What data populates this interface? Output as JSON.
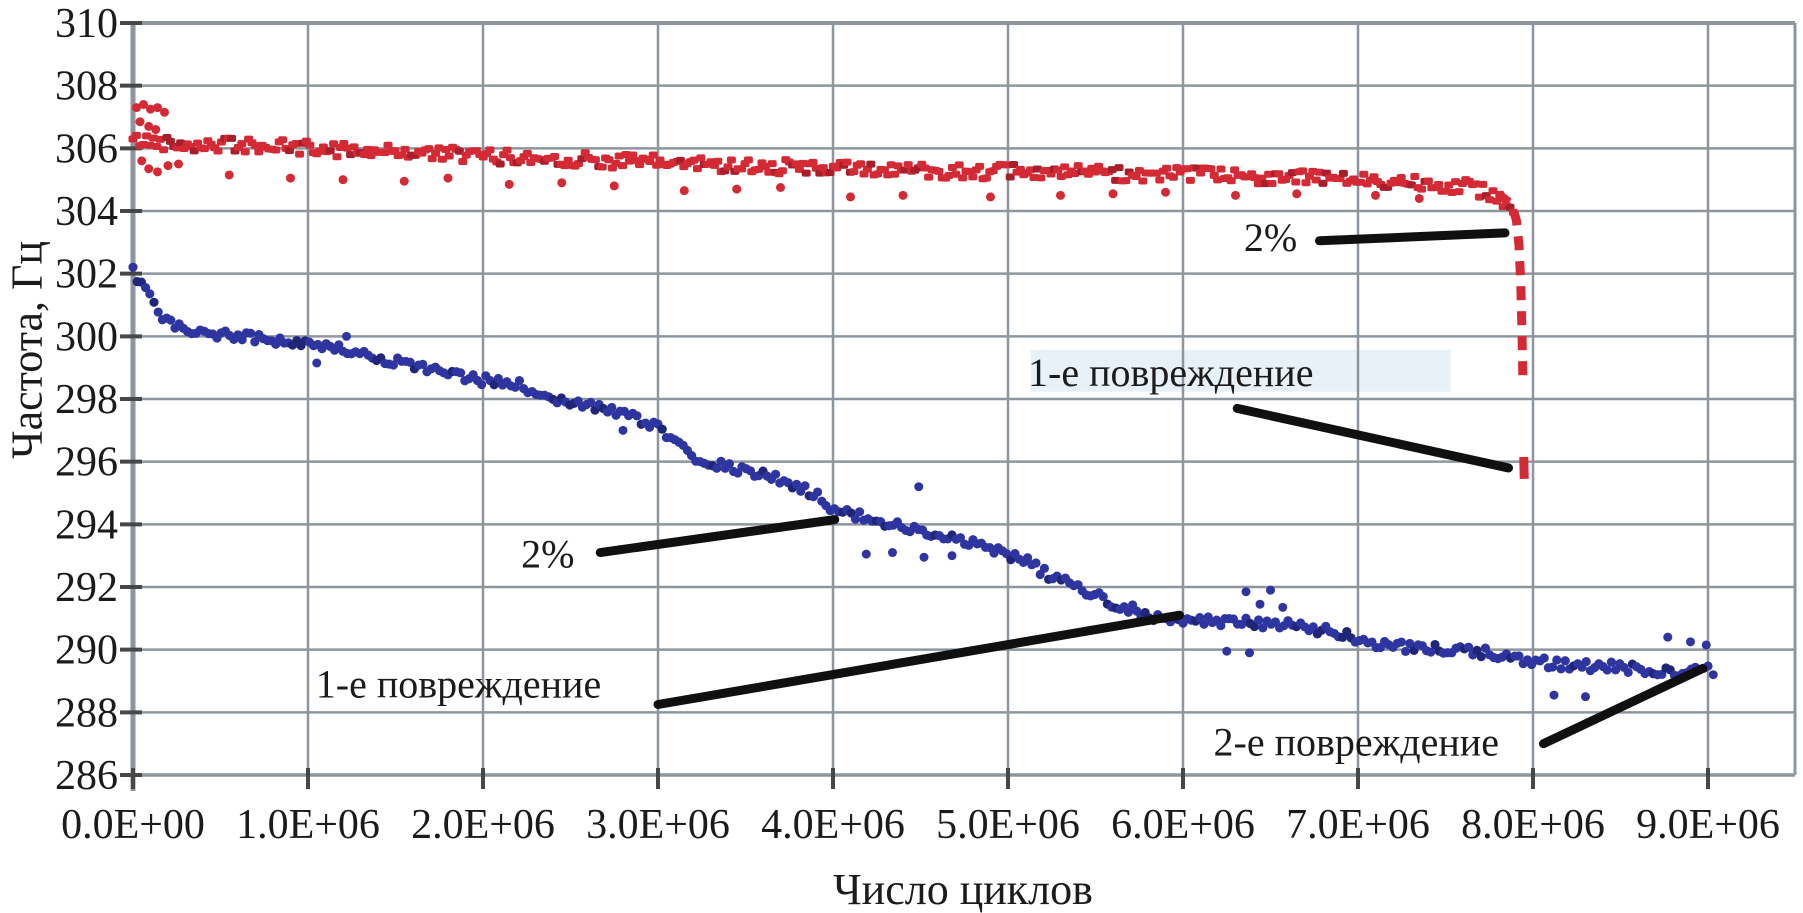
{
  "chart_data": {
    "type": "scatter",
    "title": "",
    "xlabel": "Число циклов",
    "ylabel": "Частота, Гц",
    "x_unit": "millions of cycles",
    "y_unit": "Hz",
    "xlim_millions": [
      0,
      9.5
    ],
    "ylim": [
      286,
      310
    ],
    "grid": true,
    "x_tick_values_millions": [
      0,
      1,
      2,
      3,
      4,
      5,
      6,
      7,
      8,
      9
    ],
    "x_tick_labels": [
      "0.0E+00",
      "1.0E+06",
      "2.0E+06",
      "3.0E+06",
      "4.0E+06",
      "5.0E+06",
      "6.0E+06",
      "7.0E+06",
      "8.0E+06",
      "9.0E+06"
    ],
    "y_tick_values": [
      310,
      308,
      306,
      304,
      302,
      300,
      298,
      296,
      294,
      292,
      290,
      288,
      286
    ],
    "y_tick_labels": [
      "310",
      "308",
      "306",
      "304",
      "302",
      "300",
      "298",
      "296",
      "294",
      "292",
      "290",
      "288",
      "286"
    ],
    "series": [
      {
        "id": "red",
        "name": "верхняя кривая (красная)",
        "color": "#d42a35",
        "color_dark": "#a81f2b",
        "noise_hz": 0.24,
        "anchors": [
          [
            0.0,
            306.25
          ],
          [
            0.3,
            306.15
          ],
          [
            0.6,
            306.1
          ],
          [
            1.0,
            306.0
          ],
          [
            1.5,
            305.9
          ],
          [
            2.0,
            305.75
          ],
          [
            2.5,
            305.65
          ],
          [
            3.0,
            305.55
          ],
          [
            3.5,
            305.45
          ],
          [
            4.0,
            305.35
          ],
          [
            4.5,
            305.3
          ],
          [
            5.0,
            305.25
          ],
          [
            5.5,
            305.2
          ],
          [
            6.0,
            305.15
          ],
          [
            6.5,
            305.1
          ],
          [
            7.0,
            305.0
          ],
          [
            7.3,
            304.95
          ],
          [
            7.5,
            304.85
          ],
          [
            7.65,
            304.75
          ],
          [
            7.78,
            304.55
          ],
          [
            7.85,
            304.3
          ],
          [
            7.89,
            304.05
          ]
        ],
        "outliers": [
          [
            0.55,
            305.15
          ],
          [
            0.9,
            305.05
          ],
          [
            1.2,
            305.0
          ],
          [
            1.55,
            304.95
          ],
          [
            1.8,
            305.05
          ],
          [
            2.15,
            304.85
          ],
          [
            2.45,
            304.9
          ],
          [
            2.75,
            304.8
          ],
          [
            3.15,
            304.65
          ],
          [
            3.45,
            304.7
          ],
          [
            3.7,
            304.75
          ],
          [
            4.1,
            304.45
          ],
          [
            4.4,
            304.5
          ],
          [
            4.9,
            304.45
          ],
          [
            5.3,
            304.5
          ],
          [
            5.6,
            304.55
          ],
          [
            5.9,
            304.6
          ],
          [
            6.3,
            304.5
          ],
          [
            6.65,
            304.55
          ],
          [
            7.1,
            304.5
          ],
          [
            7.35,
            304.4
          ]
        ],
        "start_cluster": [
          [
            0.02,
            307.3
          ],
          [
            0.06,
            307.4
          ],
          [
            0.1,
            307.25
          ],
          [
            0.14,
            307.3
          ],
          [
            0.18,
            307.15
          ],
          [
            0.04,
            306.85
          ],
          [
            0.09,
            306.7
          ],
          [
            0.13,
            306.6
          ],
          [
            0.05,
            305.6
          ],
          [
            0.09,
            305.35
          ],
          [
            0.14,
            305.25
          ],
          [
            0.2,
            305.45
          ],
          [
            0.26,
            305.5
          ]
        ],
        "drop_dash_path": [
          [
            7.8,
            304.55
          ],
          [
            7.88,
            304.2
          ],
          [
            7.905,
            303.7
          ],
          [
            7.92,
            302.9
          ],
          [
            7.93,
            301.7
          ],
          [
            7.937,
            300.2
          ],
          [
            7.942,
            298.65
          ]
        ],
        "drop_final_dash": [
          [
            7.947,
            296.15
          ],
          [
            7.95,
            295.45
          ]
        ]
      },
      {
        "id": "blue",
        "name": "нижняя кривая (синяя)",
        "color": "#2e35a0",
        "color_dark": "#1f2577",
        "noise_hz": 0.16,
        "anchors": [
          [
            0.0,
            302.05
          ],
          [
            0.04,
            301.7
          ],
          [
            0.08,
            301.35
          ],
          [
            0.12,
            301.0
          ],
          [
            0.16,
            300.7
          ],
          [
            0.22,
            300.45
          ],
          [
            0.3,
            300.25
          ],
          [
            0.45,
            300.1
          ],
          [
            0.6,
            300.0
          ],
          [
            0.8,
            299.9
          ],
          [
            1.0,
            299.75
          ],
          [
            1.2,
            299.55
          ],
          [
            1.4,
            299.3
          ],
          [
            1.6,
            299.05
          ],
          [
            1.8,
            298.8
          ],
          [
            2.0,
            298.6
          ],
          [
            2.2,
            298.45
          ],
          [
            2.4,
            297.95
          ],
          [
            2.6,
            297.8
          ],
          [
            2.8,
            297.55
          ],
          [
            3.0,
            297.05
          ],
          [
            3.1,
            296.6
          ],
          [
            3.2,
            296.2
          ],
          [
            3.3,
            295.95
          ],
          [
            3.45,
            295.75
          ],
          [
            3.6,
            295.55
          ],
          [
            3.75,
            295.35
          ],
          [
            3.9,
            294.95
          ],
          [
            4.0,
            294.45
          ],
          [
            4.15,
            294.25
          ],
          [
            4.3,
            294.05
          ],
          [
            4.45,
            293.85
          ],
          [
            4.6,
            293.65
          ],
          [
            4.75,
            293.5
          ],
          [
            4.88,
            293.25
          ],
          [
            5.0,
            293.0
          ],
          [
            5.12,
            292.8
          ],
          [
            5.25,
            292.3
          ],
          [
            5.4,
            292.0
          ],
          [
            5.55,
            291.6
          ],
          [
            5.7,
            291.3
          ],
          [
            5.85,
            291.05
          ],
          [
            6.05,
            290.95
          ],
          [
            6.25,
            290.85
          ],
          [
            6.45,
            290.85
          ],
          [
            6.65,
            290.75
          ],
          [
            6.85,
            290.55
          ],
          [
            7.05,
            290.25
          ],
          [
            7.25,
            290.1
          ],
          [
            7.45,
            290.0
          ],
          [
            7.65,
            289.95
          ],
          [
            7.85,
            289.8
          ],
          [
            8.05,
            289.6
          ],
          [
            8.25,
            289.5
          ],
          [
            8.45,
            289.45
          ],
          [
            8.65,
            289.35
          ],
          [
            8.82,
            289.3
          ],
          [
            8.95,
            289.4
          ],
          [
            9.02,
            289.45
          ]
        ],
        "outliers": [
          [
            1.05,
            299.15
          ],
          [
            1.22,
            300.0
          ],
          [
            2.8,
            297.0
          ],
          [
            4.49,
            295.2
          ],
          [
            4.19,
            293.05
          ],
          [
            4.34,
            293.1
          ],
          [
            4.52,
            292.95
          ],
          [
            4.68,
            293.0
          ],
          [
            6.25,
            289.95
          ],
          [
            6.38,
            289.9
          ],
          [
            6.36,
            291.85
          ],
          [
            6.5,
            291.9
          ],
          [
            6.44,
            291.45
          ],
          [
            6.57,
            291.35
          ],
          [
            8.12,
            288.55
          ],
          [
            8.3,
            288.5
          ],
          [
            8.77,
            290.4
          ],
          [
            8.9,
            290.25
          ],
          [
            8.99,
            290.15
          ],
          [
            9.03,
            289.2
          ]
        ],
        "start_cluster": []
      }
    ],
    "annotations": [
      {
        "id": "pct-upper",
        "label": "2%",
        "text_at": [
          6.5,
          303.2
        ],
        "leader": [
          [
            6.78,
            303.05
          ],
          [
            7.84,
            303.3
          ]
        ],
        "highlight": false
      },
      {
        "id": "dmg1-upper",
        "label": "1-е повреждение",
        "text_at": [
          5.93,
          298.9
        ],
        "leader": [
          [
            6.31,
            297.7
          ],
          [
            7.86,
            295.8
          ]
        ],
        "highlight": true
      },
      {
        "id": "pct-lower",
        "label": "2%",
        "text_at": [
          2.37,
          293.1
        ],
        "leader": [
          [
            2.67,
            293.1
          ],
          [
            4.01,
            294.15
          ]
        ],
        "highlight": false
      },
      {
        "id": "dmg1-lower",
        "label": "1-е повреждение",
        "text_at": [
          1.86,
          288.95
        ],
        "leader": [
          [
            3.0,
            288.25
          ],
          [
            5.98,
            291.1
          ]
        ],
        "highlight": false
      },
      {
        "id": "dmg2",
        "label": "2-е повреждение",
        "text_at": [
          6.99,
          287.1
        ],
        "leader": [
          [
            8.06,
            287.0
          ],
          [
            8.97,
            289.4
          ]
        ],
        "highlight": false
      }
    ]
  },
  "colors": {
    "grid": "#8d969e",
    "axis": "#8d969e",
    "tick_nub": "#474747",
    "text": "#1b1b1b",
    "leader": "#101010",
    "highlight_band": "#e9f1f8",
    "background": "#ffffff"
  }
}
